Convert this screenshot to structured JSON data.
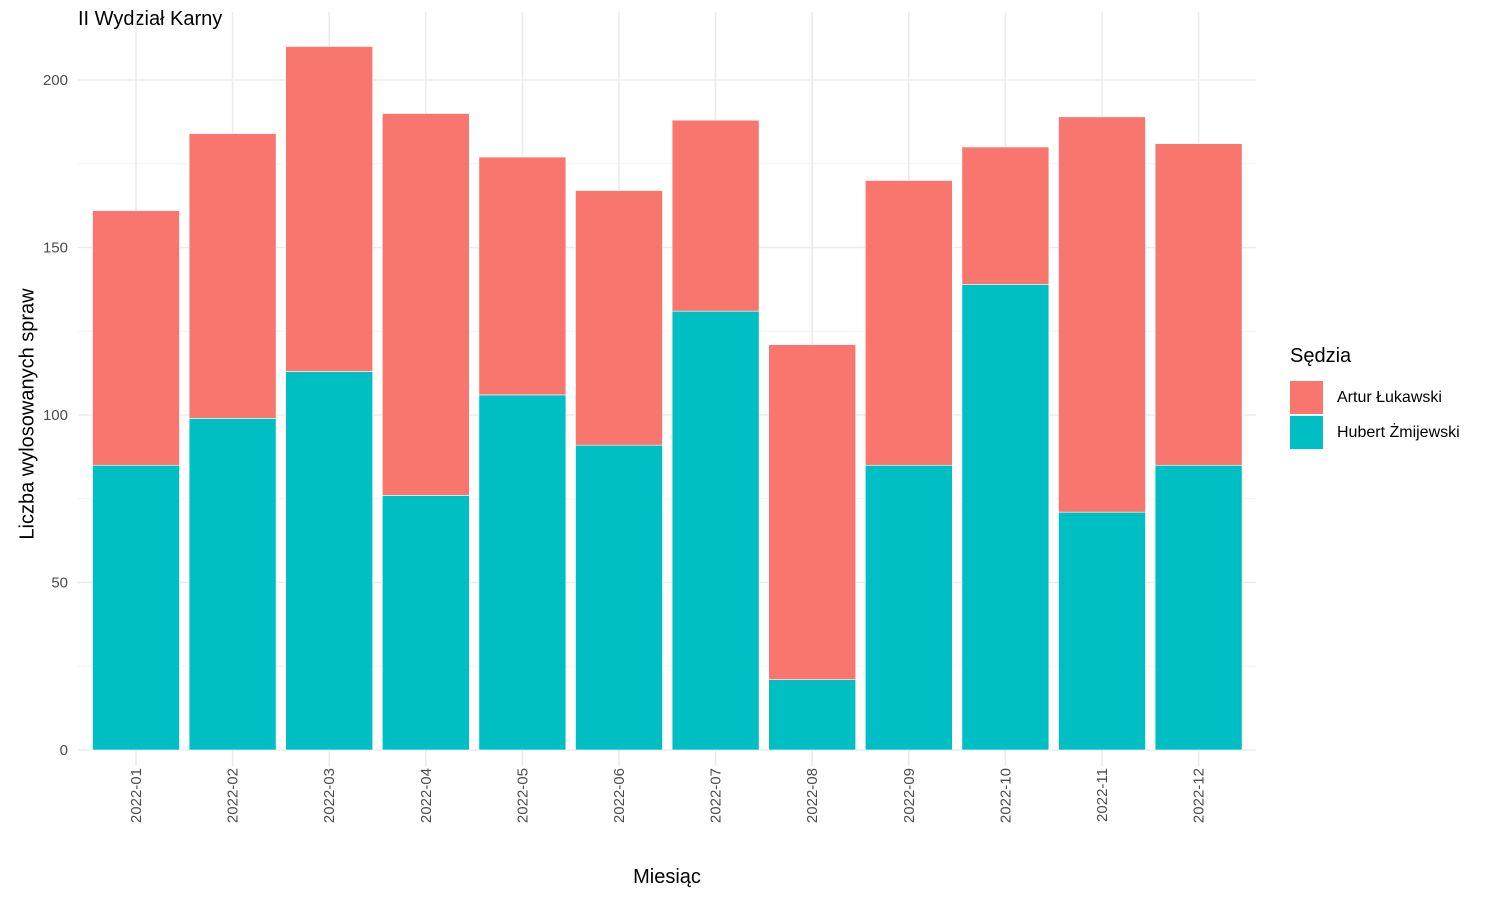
{
  "chart_data": {
    "type": "bar",
    "stacked": true,
    "title": "II Wydział Karny",
    "xlabel": "Miesiąc",
    "ylabel": "Liczba wylosowanych spraw",
    "ylim": [
      0,
      210
    ],
    "yticks": [
      0,
      50,
      100,
      150,
      200
    ],
    "grid": true,
    "legend_position": "right",
    "legend_title": "Sędzia",
    "categories": [
      "2022-01",
      "2022-02",
      "2022-03",
      "2022-04",
      "2022-05",
      "2022-06",
      "2022-07",
      "2022-08",
      "2022-09",
      "2022-10",
      "2022-11",
      "2022-12"
    ],
    "series": [
      {
        "name": "Artur Łukawski",
        "color": "#F8766D",
        "values": [
          76,
          85,
          97,
          114,
          71,
          76,
          57,
          100,
          85,
          41,
          118,
          96
        ]
      },
      {
        "name": "Hubert Żmijewski",
        "color": "#00BFC4",
        "values": [
          85,
          99,
          113,
          76,
          106,
          91,
          131,
          21,
          85,
          139,
          71,
          85
        ]
      }
    ]
  }
}
